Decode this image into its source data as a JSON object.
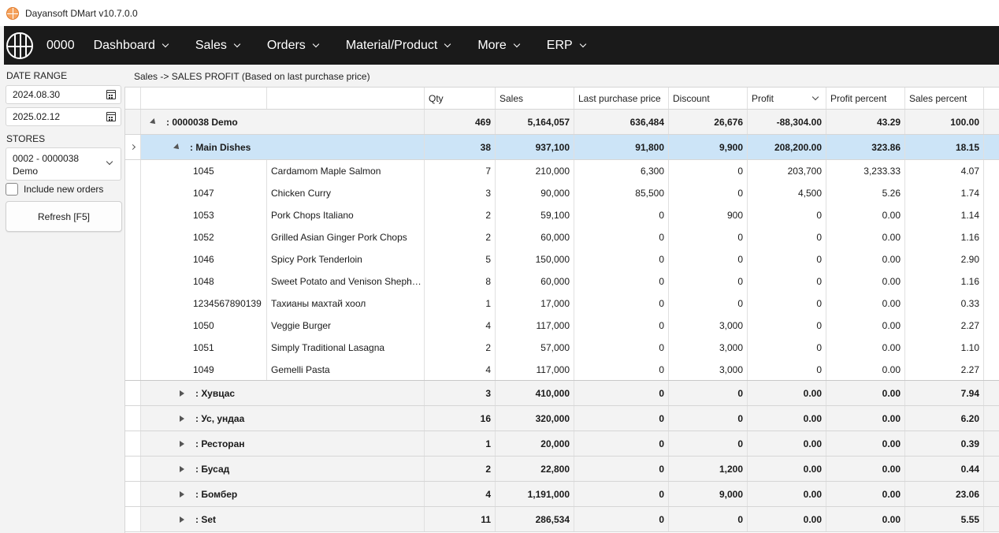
{
  "window": {
    "title": "Dayansoft DMart v10.7.0.0"
  },
  "nav": {
    "code": "0000",
    "items": [
      {
        "label": "Dashboard"
      },
      {
        "label": "Sales"
      },
      {
        "label": "Orders"
      },
      {
        "label": "Material/Product"
      },
      {
        "label": "More"
      },
      {
        "label": "ERP"
      }
    ]
  },
  "sidebar": {
    "date_range_label": "DATE RANGE",
    "date_from": "2024.08.30",
    "date_to": "2025.02.12",
    "stores_label": "STORES",
    "store_line1": "0002 - 0000038",
    "store_line2": "Demo",
    "include_new_orders": "Include new orders",
    "refresh_label": "Refresh [F5]"
  },
  "breadcrumb": "Sales -> SALES PROFIT (Based on last purchase price)",
  "table": {
    "headers": [
      "Qty",
      "Sales",
      "Last purchase price",
      "Discount",
      "Profit",
      "Profit percent",
      "Sales percent"
    ],
    "root": {
      "label": ": 0000038 Demo",
      "qty": "469",
      "sales": "5,164,057",
      "lpp": "636,484",
      "discount": "26,676",
      "profit": "-88,304.00",
      "profit_pct": "43.29",
      "sales_pct": "100.00"
    },
    "selected_group": {
      "label": ": Main Dishes",
      "qty": "38",
      "sales": "937,100",
      "lpp": "91,800",
      "discount": "9,900",
      "profit": "208,200.00",
      "profit_pct": "323.86",
      "sales_pct": "18.15"
    },
    "items": [
      {
        "code": "1045",
        "name": "Cardamom Maple Salmon",
        "qty": "7",
        "sales": "210,000",
        "lpp": "6,300",
        "discount": "0",
        "profit": "203,700",
        "profit_pct": "3,233.33",
        "sales_pct": "4.07"
      },
      {
        "code": "1047",
        "name": "Chicken Curry",
        "qty": "3",
        "sales": "90,000",
        "lpp": "85,500",
        "discount": "0",
        "profit": "4,500",
        "profit_pct": "5.26",
        "sales_pct": "1.74"
      },
      {
        "code": "1053",
        "name": "Pork Chops Italiano",
        "qty": "2",
        "sales": "59,100",
        "lpp": "0",
        "discount": "900",
        "profit": "0",
        "profit_pct": "0.00",
        "sales_pct": "1.14"
      },
      {
        "code": "1052",
        "name": "Grilled Asian Ginger Pork Chops",
        "qty": "2",
        "sales": "60,000",
        "lpp": "0",
        "discount": "0",
        "profit": "0",
        "profit_pct": "0.00",
        "sales_pct": "1.16"
      },
      {
        "code": "1046",
        "name": "Spicy Pork Tenderloin",
        "qty": "5",
        "sales": "150,000",
        "lpp": "0",
        "discount": "0",
        "profit": "0",
        "profit_pct": "0.00",
        "sales_pct": "2.90"
      },
      {
        "code": "1048",
        "name": "Sweet Potato and Venison Sheph…",
        "qty": "8",
        "sales": "60,000",
        "lpp": "0",
        "discount": "0",
        "profit": "0",
        "profit_pct": "0.00",
        "sales_pct": "1.16"
      },
      {
        "code": "1234567890139",
        "name": "Тахианы махтай хоол",
        "qty": "1",
        "sales": "17,000",
        "lpp": "0",
        "discount": "0",
        "profit": "0",
        "profit_pct": "0.00",
        "sales_pct": "0.33"
      },
      {
        "code": "1050",
        "name": "Veggie Burger",
        "qty": "4",
        "sales": "117,000",
        "lpp": "0",
        "discount": "3,000",
        "profit": "0",
        "profit_pct": "0.00",
        "sales_pct": "2.27"
      },
      {
        "code": "1051",
        "name": "Simply Traditional Lasagna",
        "qty": "2",
        "sales": "57,000",
        "lpp": "0",
        "discount": "3,000",
        "profit": "0",
        "profit_pct": "0.00",
        "sales_pct": "1.10"
      },
      {
        "code": "1049",
        "name": "Gemelli Pasta",
        "qty": "4",
        "sales": "117,000",
        "lpp": "0",
        "discount": "3,000",
        "profit": "0",
        "profit_pct": "0.00",
        "sales_pct": "2.27"
      }
    ],
    "groups": [
      {
        "label": ": Хувцас",
        "qty": "3",
        "sales": "410,000",
        "lpp": "0",
        "discount": "0",
        "profit": "0.00",
        "profit_pct": "0.00",
        "sales_pct": "7.94"
      },
      {
        "label": ": Ус, ундаа",
        "qty": "16",
        "sales": "320,000",
        "lpp": "0",
        "discount": "0",
        "profit": "0.00",
        "profit_pct": "0.00",
        "sales_pct": "6.20"
      },
      {
        "label": ": Ресторан",
        "qty": "1",
        "sales": "20,000",
        "lpp": "0",
        "discount": "0",
        "profit": "0.00",
        "profit_pct": "0.00",
        "sales_pct": "0.39"
      },
      {
        "label": ": Бусад",
        "qty": "2",
        "sales": "22,800",
        "lpp": "0",
        "discount": "1,200",
        "profit": "0.00",
        "profit_pct": "0.00",
        "sales_pct": "0.44"
      },
      {
        "label": ": Бомбер",
        "qty": "4",
        "sales": "1,191,000",
        "lpp": "0",
        "discount": "9,000",
        "profit": "0.00",
        "profit_pct": "0.00",
        "sales_pct": "23.06"
      },
      {
        "label": ": Set",
        "qty": "11",
        "sales": "286,534",
        "lpp": "0",
        "discount": "0",
        "profit": "0.00",
        "profit_pct": "0.00",
        "sales_pct": "5.55"
      }
    ]
  },
  "colors": {
    "navbar": "#1a1a1a",
    "selected_row": "#cce4f7",
    "group_row": "#f3f3f3"
  }
}
